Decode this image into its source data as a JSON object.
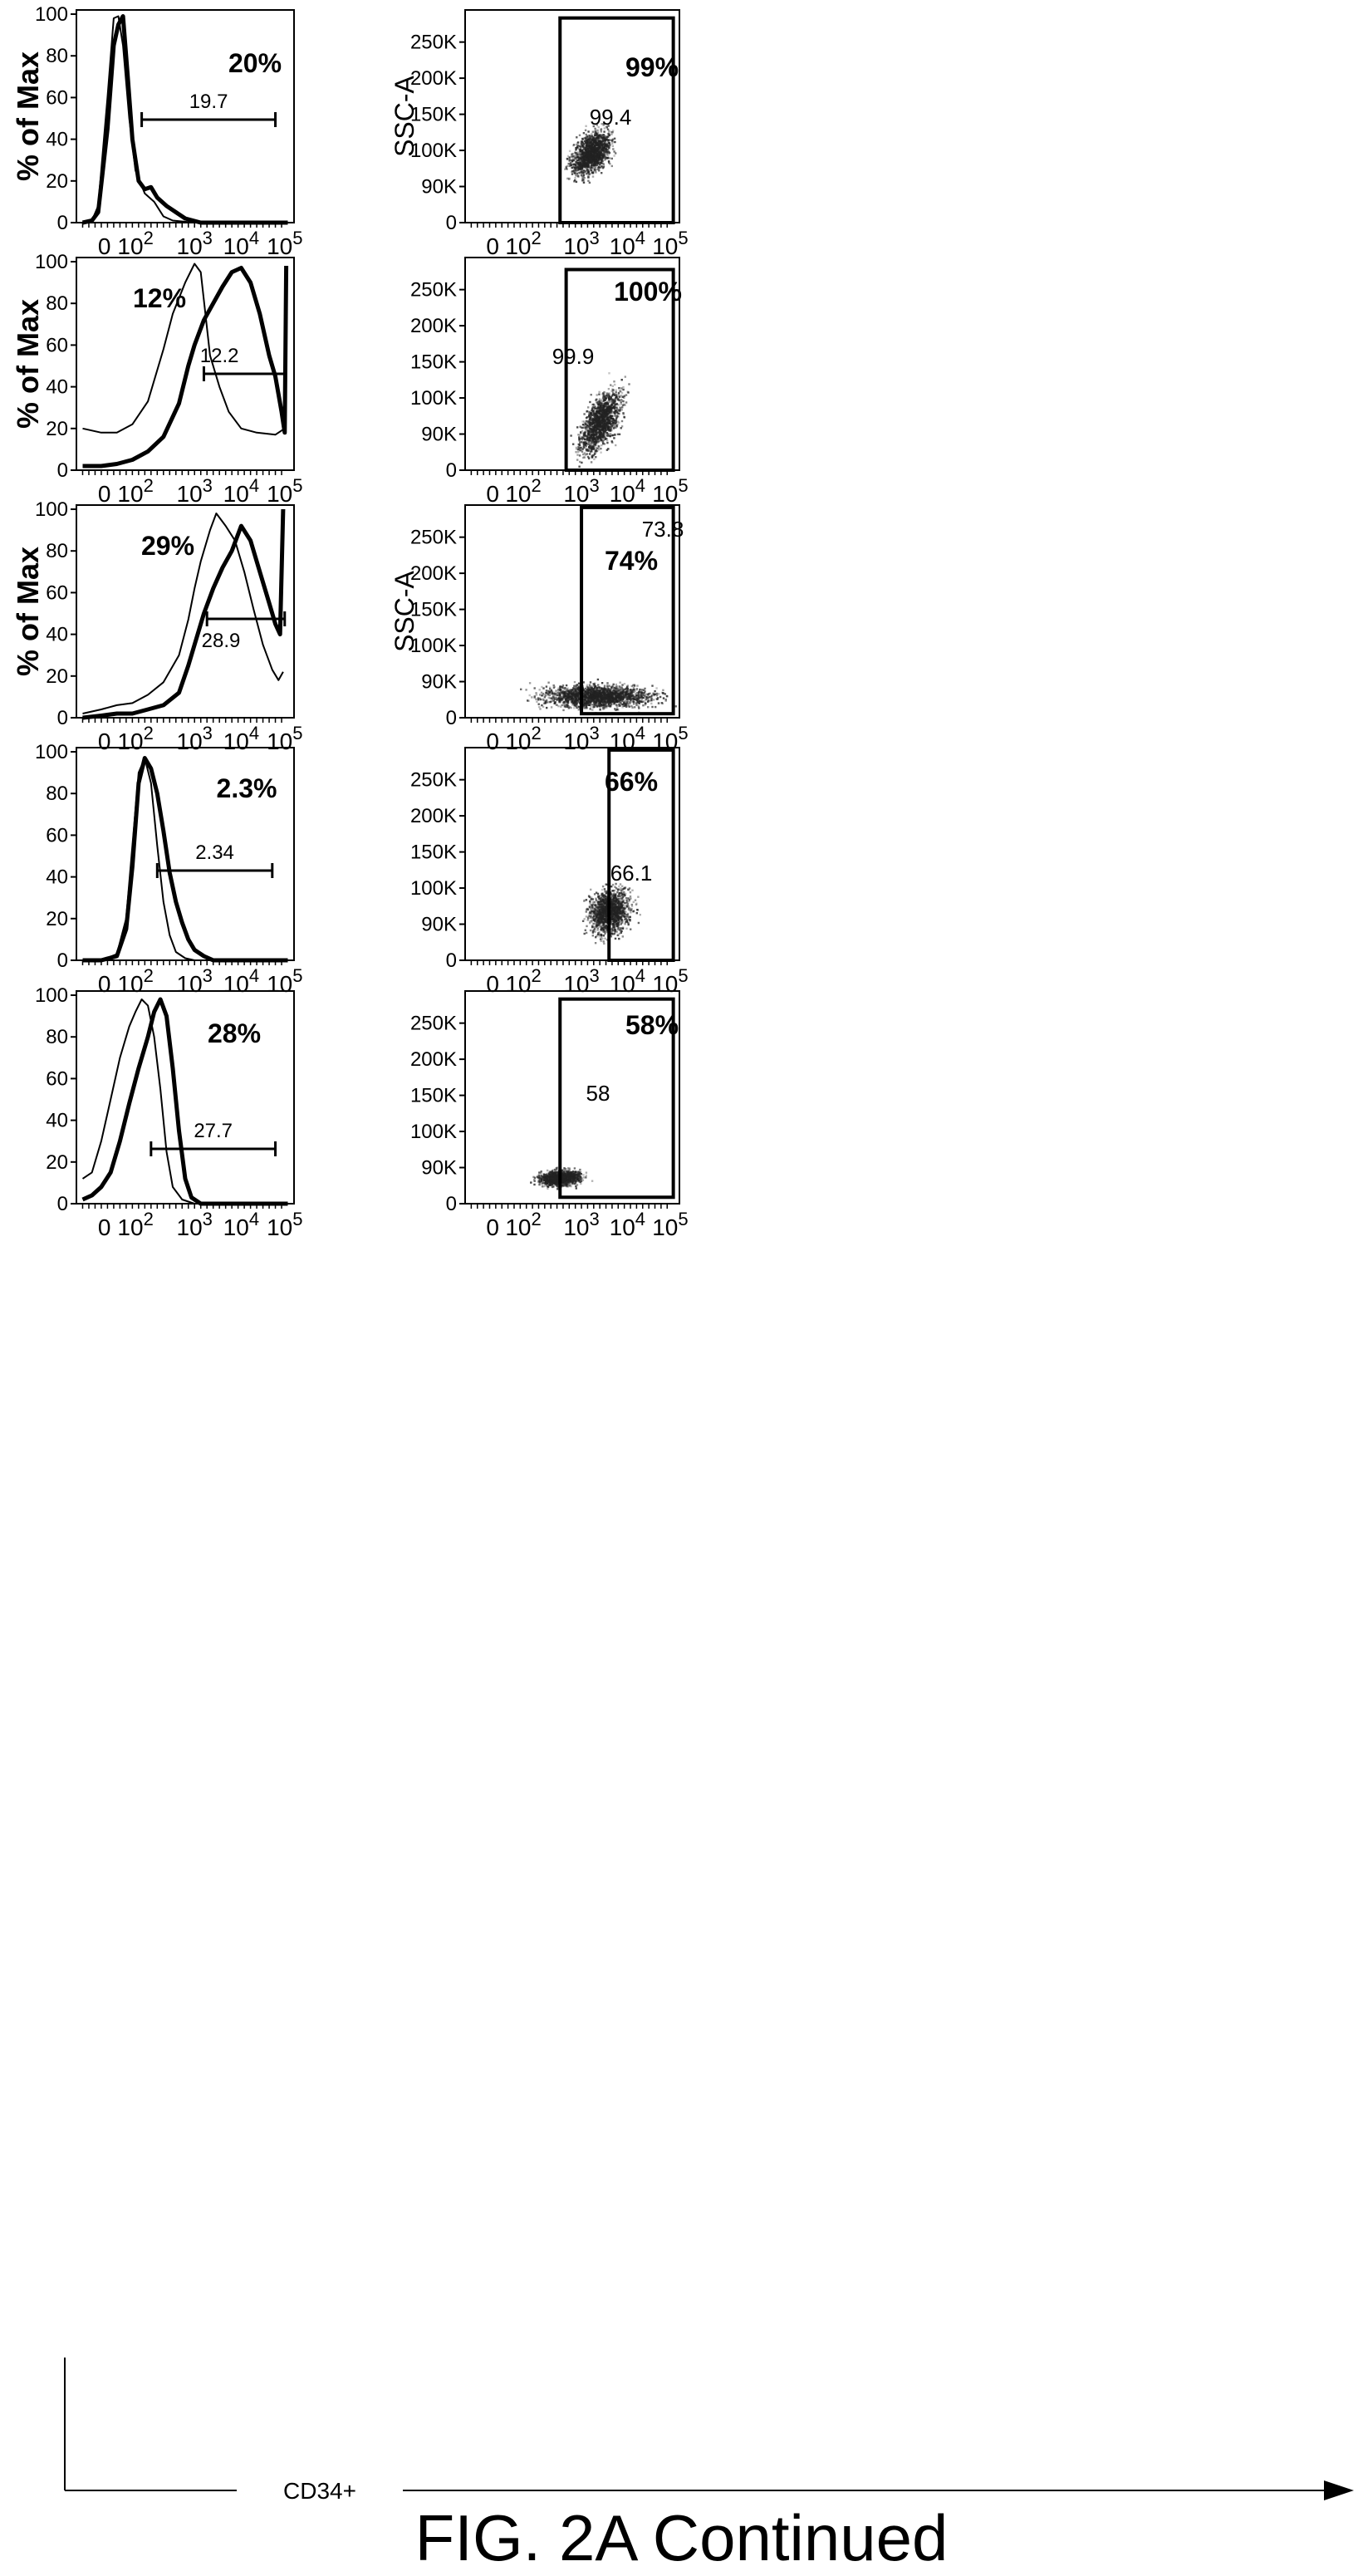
{
  "caption": "FIG. 2A Continued",
  "x_axis_label": "CD34+",
  "chart_data": [
    {
      "type": "line",
      "ylabel": "% of Max",
      "yticks": [
        "0",
        "20",
        "40",
        "60",
        "80",
        "100"
      ],
      "xticks": [
        "0",
        "10^2",
        "10^3",
        "10^4",
        "10^5"
      ],
      "percent_label": "20%",
      "gate_value": "19.7",
      "series": [
        {
          "points": [
            [
              -0.6,
              0
            ],
            [
              -0.3,
              1
            ],
            [
              -0.1,
              8
            ],
            [
              0.2,
              60
            ],
            [
              0.4,
              98
            ],
            [
              0.55,
              99
            ],
            [
              0.7,
              85
            ],
            [
              0.9,
              50
            ],
            [
              1.1,
              25
            ],
            [
              1.4,
              14
            ],
            [
              1.7,
              10
            ],
            [
              2.0,
              3
            ],
            [
              2.3,
              1
            ],
            [
              3,
              0
            ],
            [
              6,
              0
            ]
          ]
        },
        {
          "points": [
            [
              -0.6,
              0
            ],
            [
              -0.3,
              1
            ],
            [
              -0.1,
              5
            ],
            [
              0.2,
              45
            ],
            [
              0.4,
              85
            ],
            [
              0.55,
              95
            ],
            [
              0.7,
              99
            ],
            [
              0.85,
              70
            ],
            [
              1.0,
              40
            ],
            [
              1.2,
              20
            ],
            [
              1.4,
              16
            ],
            [
              1.6,
              17
            ],
            [
              1.8,
              12
            ],
            [
              2.1,
              8
            ],
            [
              2.4,
              5
            ],
            [
              2.7,
              2
            ],
            [
              3.2,
              0
            ],
            [
              6,
              0
            ]
          ]
        }
      ]
    },
    {
      "type": "line",
      "ylabel": "% of Max",
      "yticks": [
        "0",
        "20",
        "40",
        "60",
        "80",
        "100"
      ],
      "xticks": [
        "0",
        "10^2",
        "10^3",
        "10^4",
        "10^5"
      ],
      "percent_label": "12%",
      "gate_value": "12.2",
      "series": [
        {
          "points": [
            [
              -0.6,
              20
            ],
            [
              0,
              18
            ],
            [
              0.5,
              18
            ],
            [
              1.0,
              22
            ],
            [
              1.5,
              33
            ],
            [
              2.0,
              58
            ],
            [
              2.3,
              75
            ],
            [
              2.7,
              90
            ],
            [
              3.0,
              99
            ],
            [
              3.2,
              95
            ],
            [
              3.5,
              55
            ],
            [
              3.8,
              40
            ],
            [
              4.1,
              28
            ],
            [
              4.5,
              20
            ],
            [
              5,
              18
            ],
            [
              5.6,
              17
            ],
            [
              5.9,
              20
            ]
          ]
        },
        {
          "points": [
            [
              -0.6,
              2
            ],
            [
              0,
              2
            ],
            [
              0.5,
              3
            ],
            [
              1.0,
              5
            ],
            [
              1.5,
              9
            ],
            [
              2.0,
              16
            ],
            [
              2.5,
              32
            ],
            [
              2.8,
              50
            ],
            [
              3.0,
              60
            ],
            [
              3.3,
              72
            ],
            [
              3.6,
              80
            ],
            [
              3.9,
              88
            ],
            [
              4.2,
              95
            ],
            [
              4.5,
              97
            ],
            [
              4.8,
              90
            ],
            [
              5.1,
              75
            ],
            [
              5.4,
              55
            ],
            [
              5.6,
              45
            ],
            [
              5.8,
              28
            ],
            [
              5.9,
              18
            ],
            [
              5.95,
              98
            ]
          ]
        }
      ]
    },
    {
      "type": "line",
      "ylabel": "% of Max",
      "yticks": [
        "0",
        "20",
        "40",
        "60",
        "80",
        "100"
      ],
      "xticks": [
        "0",
        "10^2",
        "10^3",
        "10^4",
        "10^5"
      ],
      "percent_label": "29%",
      "gate_value": "28.9",
      "series": [
        {
          "points": [
            [
              -0.6,
              2
            ],
            [
              0,
              4
            ],
            [
              0.5,
              6
            ],
            [
              1.0,
              7
            ],
            [
              1.5,
              11
            ],
            [
              2.0,
              17
            ],
            [
              2.5,
              30
            ],
            [
              2.8,
              47
            ],
            [
              3.0,
              62
            ],
            [
              3.2,
              75
            ],
            [
              3.5,
              90
            ],
            [
              3.7,
              98
            ],
            [
              4.0,
              92
            ],
            [
              4.3,
              85
            ],
            [
              4.6,
              70
            ],
            [
              4.9,
              52
            ],
            [
              5.2,
              35
            ],
            [
              5.5,
              23
            ],
            [
              5.7,
              18
            ],
            [
              5.85,
              22
            ]
          ]
        },
        {
          "points": [
            [
              -0.6,
              0
            ],
            [
              0,
              1
            ],
            [
              0.5,
              2
            ],
            [
              1.0,
              2
            ],
            [
              1.5,
              4
            ],
            [
              2.0,
              6
            ],
            [
              2.5,
              12
            ],
            [
              2.8,
              25
            ],
            [
              3.0,
              35
            ],
            [
              3.3,
              50
            ],
            [
              3.6,
              62
            ],
            [
              3.9,
              72
            ],
            [
              4.2,
              80
            ],
            [
              4.5,
              92
            ],
            [
              4.8,
              85
            ],
            [
              5.1,
              70
            ],
            [
              5.4,
              55
            ],
            [
              5.6,
              45
            ],
            [
              5.75,
              40
            ],
            [
              5.85,
              100
            ]
          ]
        }
      ]
    },
    {
      "type": "line",
      "ylabel": "",
      "yticks": [
        "0",
        "20",
        "40",
        "60",
        "80",
        "100"
      ],
      "xticks": [
        "0",
        "10^2",
        "10^3",
        "10^4",
        "10^5"
      ],
      "percent_label": "2.3%",
      "gate_value": "2.34",
      "series": [
        {
          "points": [
            [
              -0.6,
              0
            ],
            [
              0,
              0
            ],
            [
              0.5,
              3
            ],
            [
              0.8,
              20
            ],
            [
              1.0,
              55
            ],
            [
              1.2,
              90
            ],
            [
              1.4,
              97
            ],
            [
              1.6,
              85
            ],
            [
              1.8,
              55
            ],
            [
              2.0,
              28
            ],
            [
              2.2,
              12
            ],
            [
              2.4,
              4
            ],
            [
              2.7,
              1
            ],
            [
              3.0,
              0
            ],
            [
              6,
              0
            ]
          ]
        },
        {
          "points": [
            [
              -0.6,
              0
            ],
            [
              0,
              0
            ],
            [
              0.5,
              2
            ],
            [
              0.8,
              15
            ],
            [
              1.0,
              45
            ],
            [
              1.2,
              85
            ],
            [
              1.4,
              97
            ],
            [
              1.6,
              92
            ],
            [
              1.8,
              80
            ],
            [
              2.0,
              62
            ],
            [
              2.2,
              42
            ],
            [
              2.4,
              28
            ],
            [
              2.6,
              18
            ],
            [
              2.8,
              10
            ],
            [
              3.0,
              5
            ],
            [
              3.3,
              2
            ],
            [
              3.6,
              0
            ],
            [
              6,
              0
            ]
          ]
        }
      ]
    },
    {
      "type": "line",
      "ylabel": "",
      "yticks": [
        "0",
        "20",
        "40",
        "60",
        "80",
        "100"
      ],
      "xticks": [
        "0",
        "10^2",
        "10^3",
        "10^4",
        "10^5"
      ],
      "percent_label": "28%",
      "gate_value": "27.7",
      "series": [
        {
          "points": [
            [
              -0.6,
              12
            ],
            [
              -0.3,
              15
            ],
            [
              0,
              30
            ],
            [
              0.3,
              50
            ],
            [
              0.6,
              70
            ],
            [
              0.9,
              85
            ],
            [
              1.1,
              92
            ],
            [
              1.3,
              98
            ],
            [
              1.5,
              95
            ],
            [
              1.7,
              80
            ],
            [
              1.9,
              55
            ],
            [
              2.1,
              25
            ],
            [
              2.3,
              8
            ],
            [
              2.6,
              2
            ],
            [
              3.0,
              0
            ],
            [
              6,
              0
            ]
          ]
        },
        {
          "points": [
            [
              -0.6,
              2
            ],
            [
              -0.3,
              4
            ],
            [
              0,
              8
            ],
            [
              0.3,
              15
            ],
            [
              0.6,
              30
            ],
            [
              0.9,
              48
            ],
            [
              1.2,
              65
            ],
            [
              1.5,
              80
            ],
            [
              1.7,
              92
            ],
            [
              1.9,
              98
            ],
            [
              2.1,
              90
            ],
            [
              2.3,
              65
            ],
            [
              2.5,
              35
            ],
            [
              2.7,
              12
            ],
            [
              2.9,
              3
            ],
            [
              3.2,
              0
            ],
            [
              6,
              0
            ]
          ]
        }
      ]
    },
    {
      "type": "scatter",
      "ylabel": "SSC-A",
      "yticks": [
        "0",
        "90K",
        "100K",
        "150K",
        "200K",
        "250K"
      ],
      "xticks": [
        "0",
        "10^2",
        "10^3",
        "10^4",
        "10^5"
      ],
      "percent_label": "99%",
      "gate_value": "99.4",
      "gate": {
        "x": [
          2.3,
          6.0
        ],
        "y": [
          0,
          255
        ]
      },
      "cloud": {
        "cx": 3.3,
        "cy": 88,
        "sx": 0.5,
        "sy": 20,
        "n": 1500,
        "tilt": 25
      }
    },
    {
      "type": "scatter",
      "ylabel": "",
      "yticks": [
        "0",
        "90K",
        "100K",
        "150K",
        "200K",
        "250K"
      ],
      "xticks": [
        "0",
        "10^2",
        "10^3",
        "10^4",
        "10^5"
      ],
      "percent_label": "100%",
      "gate_value": "99.9",
      "gate": {
        "x": [
          2.5,
          6.0
        ],
        "y": [
          0,
          250
        ]
      },
      "cloud": {
        "cx": 3.6,
        "cy": 62,
        "sx": 0.55,
        "sy": 25,
        "n": 1500,
        "tilt": 40
      }
    },
    {
      "type": "scatter",
      "ylabel": "SSC-A",
      "yticks": [
        "0",
        "90K",
        "100K",
        "150K",
        "200K",
        "250K"
      ],
      "xticks": [
        "0",
        "10^2",
        "10^3",
        "10^4",
        "10^5"
      ],
      "percent_label": "74%",
      "gate_value": "73.8",
      "gate": {
        "x": [
          3.0,
          6.0
        ],
        "y": [
          5,
          262
        ]
      },
      "cloud": {
        "cx": 3.5,
        "cy": 28,
        "sx": 1.5,
        "sy": 11,
        "n": 1900,
        "tilt": 0
      }
    },
    {
      "type": "scatter",
      "ylabel": "",
      "yticks": [
        "0",
        "90K",
        "100K",
        "150K",
        "200K",
        "250K"
      ],
      "xticks": [
        "0",
        "10^2",
        "10^3",
        "10^4",
        "10^5"
      ],
      "percent_label": "66%",
      "gate_value": "66.1",
      "gate": {
        "x": [
          3.9,
          6.0
        ],
        "y": [
          0,
          262
        ]
      },
      "cloud": {
        "cx": 3.9,
        "cy": 62,
        "sx": 0.55,
        "sy": 22,
        "n": 1400,
        "tilt": 10
      }
    },
    {
      "type": "scatter",
      "ylabel": "",
      "yticks": [
        "0",
        "90K",
        "100K",
        "150K",
        "200K",
        "250K"
      ],
      "xticks": [
        "0",
        "10^2",
        "10^3",
        "10^4",
        "10^5"
      ],
      "percent_label": "58%",
      "gate_value": "58",
      "gate": {
        "x": [
          2.3,
          6.0
        ],
        "y": [
          8,
          255
        ]
      },
      "cloud": {
        "cx": 2.3,
        "cy": 33,
        "sx": 0.55,
        "sy": 8,
        "n": 1100,
        "tilt": 10
      }
    }
  ]
}
